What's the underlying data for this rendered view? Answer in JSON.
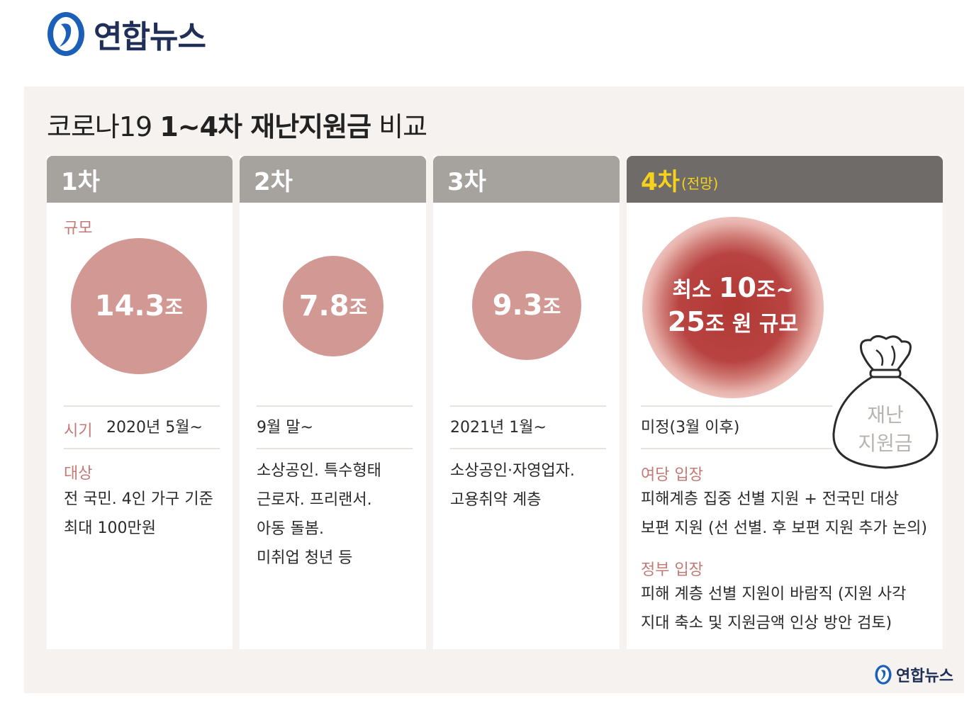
{
  "header": {
    "brand": "연합뉴스"
  },
  "title": {
    "part1": "코로나19 ",
    "part2": "1~4차 재난지원금",
    "part3": " 비교"
  },
  "labels": {
    "scale": "규모",
    "period": "시기",
    "target": "대상"
  },
  "rounds": [
    {
      "name": "1차",
      "amount": "14.3",
      "unit": "조",
      "period": "2020년 5월~",
      "target": [
        "전 국민. 4인 가구 기준",
        "최대 100만원"
      ]
    },
    {
      "name": "2차",
      "amount": "7.8",
      "unit": "조",
      "period": "9월 말~",
      "target": [
        "소상공인. 특수형태",
        "근로자. 프리랜서.",
        "아동 돌봄.",
        "미취업 청년 등"
      ]
    },
    {
      "name": "3차",
      "amount": "9.3",
      "unit": "조",
      "period": "2021년 1월~",
      "target": [
        "소상공인·자영업자.",
        "고용취약 계층"
      ]
    },
    {
      "name": "4차",
      "name_sub": "(전망)",
      "amount_line1_pre": "최소 ",
      "amount_line1_num": "10",
      "amount_line1_post": "조~",
      "amount_line2_num": "25",
      "amount_line2_post": "조 원 규모",
      "period": "미정(3월 이후)",
      "ruling_label": "여당 입장",
      "ruling": [
        "피해계층 집중 선별 지원 + 전국민 대상",
        "보편 지원 (선 선별. 후 보편 지원 추가 논의)"
      ],
      "gov_label": "정부 입장",
      "gov": [
        "피해 계층 선별 지원이 바람직 (지원 사각",
        "지대 축소 및 지원금액 인상 방안 검토)"
      ]
    }
  ],
  "bag": {
    "line1": "재난",
    "line2": "지원금"
  },
  "watermark": "연합뉴스",
  "colors": {
    "header_gray": "#a6a39f",
    "header_dark": "#6f6b68",
    "highlight_yellow": "#f6d21c",
    "bubble": "#d29994",
    "accent_red": "#b13934",
    "label_pink": "#c37a74",
    "brand_navy": "#1f2f57"
  }
}
